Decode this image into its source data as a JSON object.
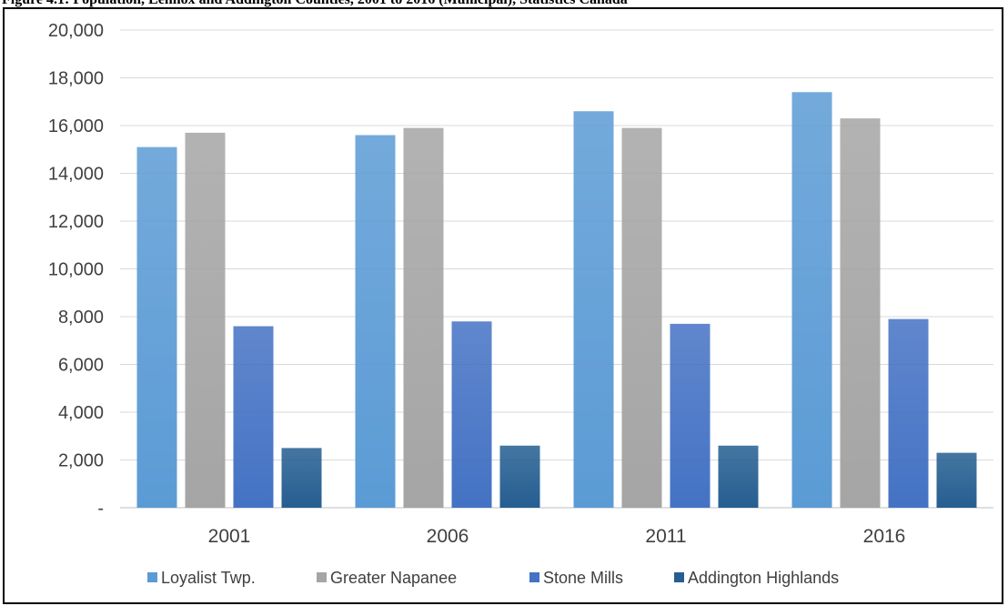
{
  "caption": "Figure 4.1: Population, Lennox and Addington Counties, 2001 to 2016 (Municipal), Statistics Canada",
  "chart_data": {
    "type": "bar",
    "title": "",
    "xlabel": "",
    "ylabel": "",
    "categories": [
      "2001",
      "2006",
      "2011",
      "2016"
    ],
    "ylim": [
      0,
      20000
    ],
    "yticks": [
      0,
      2000,
      4000,
      6000,
      8000,
      10000,
      12000,
      14000,
      16000,
      18000,
      20000
    ],
    "ytick_labels": [
      "-",
      "2,000",
      "4,000",
      "6,000",
      "8,000",
      "10,000",
      "12,000",
      "14,000",
      "16,000",
      "18,000",
      "20,000"
    ],
    "grid": true,
    "legend_position": "bottom",
    "series": [
      {
        "name": "Loyalist Twp.",
        "color": "#5b9bd5",
        "values": [
          15100,
          15600,
          16600,
          17400
        ]
      },
      {
        "name": "Greater Napanee",
        "color": "#a5a5a5",
        "values": [
          15700,
          15900,
          15900,
          16300
        ]
      },
      {
        "name": "Stone Mills",
        "color": "#4472c4",
        "values": [
          7600,
          7800,
          7700,
          7900
        ]
      },
      {
        "name": "Addington Highlands",
        "color": "#255e91",
        "values": [
          2500,
          2600,
          2600,
          2300
        ]
      }
    ]
  }
}
